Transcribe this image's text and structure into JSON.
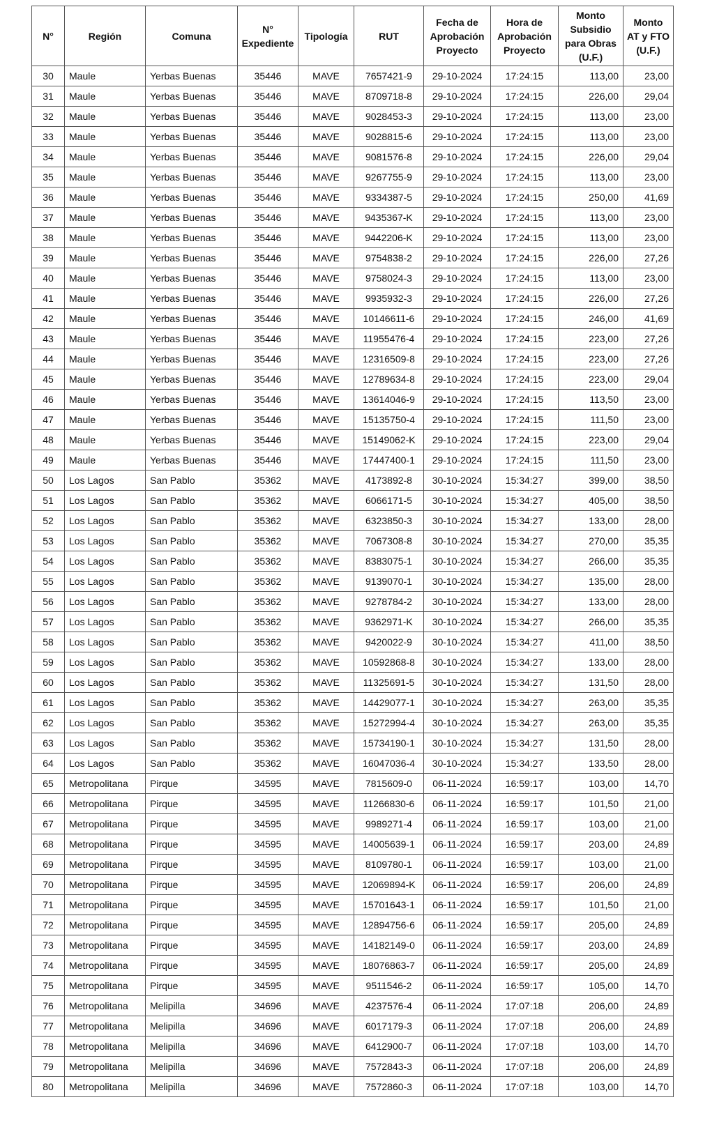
{
  "table": {
    "headers": [
      "N°",
      "Región",
      "Comuna",
      "N°\nExpediente",
      "Tipología",
      "RUT",
      "Fecha de\nAprobación\nProyecto",
      "Hora de\nAprobación\nProyecto",
      "Monto\nSubsidio\npara Obras\n(U.F.)",
      "Monto\nAT y FTO\n(U.F.)"
    ],
    "rows": [
      [
        "30",
        "Maule",
        "Yerbas Buenas",
        "35446",
        "MAVE",
        "7657421-9",
        "29-10-2024",
        "17:24:15",
        "113,00",
        "23,00"
      ],
      [
        "31",
        "Maule",
        "Yerbas Buenas",
        "35446",
        "MAVE",
        "8709718-8",
        "29-10-2024",
        "17:24:15",
        "226,00",
        "29,04"
      ],
      [
        "32",
        "Maule",
        "Yerbas Buenas",
        "35446",
        "MAVE",
        "9028453-3",
        "29-10-2024",
        "17:24:15",
        "113,00",
        "23,00"
      ],
      [
        "33",
        "Maule",
        "Yerbas Buenas",
        "35446",
        "MAVE",
        "9028815-6",
        "29-10-2024",
        "17:24:15",
        "113,00",
        "23,00"
      ],
      [
        "34",
        "Maule",
        "Yerbas Buenas",
        "35446",
        "MAVE",
        "9081576-8",
        "29-10-2024",
        "17:24:15",
        "226,00",
        "29,04"
      ],
      [
        "35",
        "Maule",
        "Yerbas Buenas",
        "35446",
        "MAVE",
        "9267755-9",
        "29-10-2024",
        "17:24:15",
        "113,00",
        "23,00"
      ],
      [
        "36",
        "Maule",
        "Yerbas Buenas",
        "35446",
        "MAVE",
        "9334387-5",
        "29-10-2024",
        "17:24:15",
        "250,00",
        "41,69"
      ],
      [
        "37",
        "Maule",
        "Yerbas Buenas",
        "35446",
        "MAVE",
        "9435367-K",
        "29-10-2024",
        "17:24:15",
        "113,00",
        "23,00"
      ],
      [
        "38",
        "Maule",
        "Yerbas Buenas",
        "35446",
        "MAVE",
        "9442206-K",
        "29-10-2024",
        "17:24:15",
        "113,00",
        "23,00"
      ],
      [
        "39",
        "Maule",
        "Yerbas Buenas",
        "35446",
        "MAVE",
        "9754838-2",
        "29-10-2024",
        "17:24:15",
        "226,00",
        "27,26"
      ],
      [
        "40",
        "Maule",
        "Yerbas Buenas",
        "35446",
        "MAVE",
        "9758024-3",
        "29-10-2024",
        "17:24:15",
        "113,00",
        "23,00"
      ],
      [
        "41",
        "Maule",
        "Yerbas Buenas",
        "35446",
        "MAVE",
        "9935932-3",
        "29-10-2024",
        "17:24:15",
        "226,00",
        "27,26"
      ],
      [
        "42",
        "Maule",
        "Yerbas Buenas",
        "35446",
        "MAVE",
        "10146611-6",
        "29-10-2024",
        "17:24:15",
        "246,00",
        "41,69"
      ],
      [
        "43",
        "Maule",
        "Yerbas Buenas",
        "35446",
        "MAVE",
        "11955476-4",
        "29-10-2024",
        "17:24:15",
        "223,00",
        "27,26"
      ],
      [
        "44",
        "Maule",
        "Yerbas Buenas",
        "35446",
        "MAVE",
        "12316509-8",
        "29-10-2024",
        "17:24:15",
        "223,00",
        "27,26"
      ],
      [
        "45",
        "Maule",
        "Yerbas Buenas",
        "35446",
        "MAVE",
        "12789634-8",
        "29-10-2024",
        "17:24:15",
        "223,00",
        "29,04"
      ],
      [
        "46",
        "Maule",
        "Yerbas Buenas",
        "35446",
        "MAVE",
        "13614046-9",
        "29-10-2024",
        "17:24:15",
        "113,50",
        "23,00"
      ],
      [
        "47",
        "Maule",
        "Yerbas Buenas",
        "35446",
        "MAVE",
        "15135750-4",
        "29-10-2024",
        "17:24:15",
        "111,50",
        "23,00"
      ],
      [
        "48",
        "Maule",
        "Yerbas Buenas",
        "35446",
        "MAVE",
        "15149062-K",
        "29-10-2024",
        "17:24:15",
        "223,00",
        "29,04"
      ],
      [
        "49",
        "Maule",
        "Yerbas Buenas",
        "35446",
        "MAVE",
        "17447400-1",
        "29-10-2024",
        "17:24:15",
        "111,50",
        "23,00"
      ],
      [
        "50",
        "Los Lagos",
        "San Pablo",
        "35362",
        "MAVE",
        "4173892-8",
        "30-10-2024",
        "15:34:27",
        "399,00",
        "38,50"
      ],
      [
        "51",
        "Los Lagos",
        "San Pablo",
        "35362",
        "MAVE",
        "6066171-5",
        "30-10-2024",
        "15:34:27",
        "405,00",
        "38,50"
      ],
      [
        "52",
        "Los Lagos",
        "San Pablo",
        "35362",
        "MAVE",
        "6323850-3",
        "30-10-2024",
        "15:34:27",
        "133,00",
        "28,00"
      ],
      [
        "53",
        "Los Lagos",
        "San Pablo",
        "35362",
        "MAVE",
        "7067308-8",
        "30-10-2024",
        "15:34:27",
        "270,00",
        "35,35"
      ],
      [
        "54",
        "Los Lagos",
        "San Pablo",
        "35362",
        "MAVE",
        "8383075-1",
        "30-10-2024",
        "15:34:27",
        "266,00",
        "35,35"
      ],
      [
        "55",
        "Los Lagos",
        "San Pablo",
        "35362",
        "MAVE",
        "9139070-1",
        "30-10-2024",
        "15:34:27",
        "135,00",
        "28,00"
      ],
      [
        "56",
        "Los Lagos",
        "San Pablo",
        "35362",
        "MAVE",
        "9278784-2",
        "30-10-2024",
        "15:34:27",
        "133,00",
        "28,00"
      ],
      [
        "57",
        "Los Lagos",
        "San Pablo",
        "35362",
        "MAVE",
        "9362971-K",
        "30-10-2024",
        "15:34:27",
        "266,00",
        "35,35"
      ],
      [
        "58",
        "Los Lagos",
        "San Pablo",
        "35362",
        "MAVE",
        "9420022-9",
        "30-10-2024",
        "15:34:27",
        "411,00",
        "38,50"
      ],
      [
        "59",
        "Los Lagos",
        "San Pablo",
        "35362",
        "MAVE",
        "10592868-8",
        "30-10-2024",
        "15:34:27",
        "133,00",
        "28,00"
      ],
      [
        "60",
        "Los Lagos",
        "San Pablo",
        "35362",
        "MAVE",
        "11325691-5",
        "30-10-2024",
        "15:34:27",
        "131,50",
        "28,00"
      ],
      [
        "61",
        "Los Lagos",
        "San Pablo",
        "35362",
        "MAVE",
        "14429077-1",
        "30-10-2024",
        "15:34:27",
        "263,00",
        "35,35"
      ],
      [
        "62",
        "Los Lagos",
        "San Pablo",
        "35362",
        "MAVE",
        "15272994-4",
        "30-10-2024",
        "15:34:27",
        "263,00",
        "35,35"
      ],
      [
        "63",
        "Los Lagos",
        "San Pablo",
        "35362",
        "MAVE",
        "15734190-1",
        "30-10-2024",
        "15:34:27",
        "131,50",
        "28,00"
      ],
      [
        "64",
        "Los Lagos",
        "San Pablo",
        "35362",
        "MAVE",
        "16047036-4",
        "30-10-2024",
        "15:34:27",
        "133,50",
        "28,00"
      ],
      [
        "65",
        "Metropolitana",
        "Pirque",
        "34595",
        "MAVE",
        "7815609-0",
        "06-11-2024",
        "16:59:17",
        "103,00",
        "14,70"
      ],
      [
        "66",
        "Metropolitana",
        "Pirque",
        "34595",
        "MAVE",
        "11266830-6",
        "06-11-2024",
        "16:59:17",
        "101,50",
        "21,00"
      ],
      [
        "67",
        "Metropolitana",
        "Pirque",
        "34595",
        "MAVE",
        "9989271-4",
        "06-11-2024",
        "16:59:17",
        "103,00",
        "21,00"
      ],
      [
        "68",
        "Metropolitana",
        "Pirque",
        "34595",
        "MAVE",
        "14005639-1",
        "06-11-2024",
        "16:59:17",
        "203,00",
        "24,89"
      ],
      [
        "69",
        "Metropolitana",
        "Pirque",
        "34595",
        "MAVE",
        "8109780-1",
        "06-11-2024",
        "16:59:17",
        "103,00",
        "21,00"
      ],
      [
        "70",
        "Metropolitana",
        "Pirque",
        "34595",
        "MAVE",
        "12069894-K",
        "06-11-2024",
        "16:59:17",
        "206,00",
        "24,89"
      ],
      [
        "71",
        "Metropolitana",
        "Pirque",
        "34595",
        "MAVE",
        "15701643-1",
        "06-11-2024",
        "16:59:17",
        "101,50",
        "21,00"
      ],
      [
        "72",
        "Metropolitana",
        "Pirque",
        "34595",
        "MAVE",
        "12894756-6",
        "06-11-2024",
        "16:59:17",
        "205,00",
        "24,89"
      ],
      [
        "73",
        "Metropolitana",
        "Pirque",
        "34595",
        "MAVE",
        "14182149-0",
        "06-11-2024",
        "16:59:17",
        "203,00",
        "24,89"
      ],
      [
        "74",
        "Metropolitana",
        "Pirque",
        "34595",
        "MAVE",
        "18076863-7",
        "06-11-2024",
        "16:59:17",
        "205,00",
        "24,89"
      ],
      [
        "75",
        "Metropolitana",
        "Pirque",
        "34595",
        "MAVE",
        "9511546-2",
        "06-11-2024",
        "16:59:17",
        "105,00",
        "14,70"
      ],
      [
        "76",
        "Metropolitana",
        "Melipilla",
        "34696",
        "MAVE",
        "4237576-4",
        "06-11-2024",
        "17:07:18",
        "206,00",
        "24,89"
      ],
      [
        "77",
        "Metropolitana",
        "Melipilla",
        "34696",
        "MAVE",
        "6017179-3",
        "06-11-2024",
        "17:07:18",
        "206,00",
        "24,89"
      ],
      [
        "78",
        "Metropolitana",
        "Melipilla",
        "34696",
        "MAVE",
        "6412900-7",
        "06-11-2024",
        "17:07:18",
        "103,00",
        "14,70"
      ],
      [
        "79",
        "Metropolitana",
        "Melipilla",
        "34696",
        "MAVE",
        "7572843-3",
        "06-11-2024",
        "17:07:18",
        "206,00",
        "24,89"
      ],
      [
        "80",
        "Metropolitana",
        "Melipilla",
        "34696",
        "MAVE",
        "7572860-3",
        "06-11-2024",
        "17:07:18",
        "103,00",
        "14,70"
      ]
    ]
  }
}
